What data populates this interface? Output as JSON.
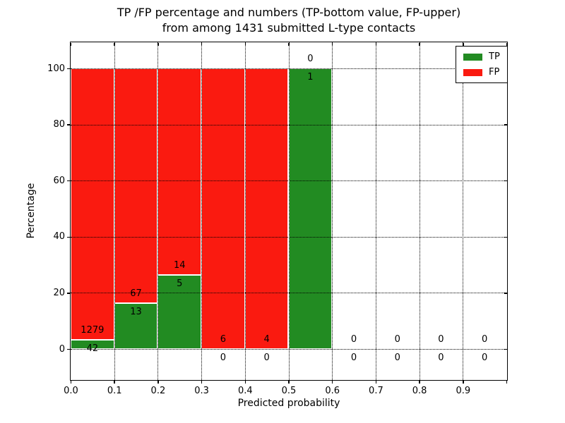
{
  "chart_data": {
    "type": "bar",
    "stacked": true,
    "normalized_to_percent": true,
    "title_line1": "TP /FP percentage and numbers (TP-bottom value, FP-upper)",
    "title_line2": "from among 1431 submitted L-type contacts",
    "xlabel": "Predicted probability",
    "ylabel": "Percentage",
    "total_contacts": 1431,
    "bin_width": 0.1,
    "bin_starts": [
      0.0,
      0.1,
      0.2,
      0.3,
      0.4,
      0.5,
      0.6,
      0.7,
      0.8,
      0.9
    ],
    "series": [
      {
        "name": "TP",
        "color": "#228b22",
        "values": [
          42,
          13,
          5,
          0,
          0,
          1,
          0,
          0,
          0,
          0
        ]
      },
      {
        "name": "FP",
        "color": "#fa1a10",
        "values": [
          1279,
          67,
          14,
          6,
          4,
          0,
          0,
          0,
          0,
          0
        ]
      }
    ],
    "tp_percent_by_bin": [
      3.18,
      16.25,
      26.32,
      0,
      0,
      100,
      null,
      null,
      null,
      null
    ],
    "x_ticks": [
      "0.0",
      "0.1",
      "0.2",
      "0.3",
      "0.4",
      "0.5",
      "0.6",
      "0.7",
      "0.8",
      "0.9"
    ],
    "y_ticks": [
      "0",
      "20",
      "40",
      "60",
      "80",
      "100"
    ],
    "xlim": [
      0.0,
      1.0
    ],
    "ylim": [
      -10.8,
      109.3
    ],
    "grid": "dotted-black",
    "bar_edge_color": "#ffffff",
    "background_color": "#ffffff",
    "legend": {
      "position": "upper-right",
      "items": [
        {
          "label": "TP",
          "color": "#228b22"
        },
        {
          "label": "FP",
          "color": "#fa1a10"
        }
      ]
    }
  }
}
